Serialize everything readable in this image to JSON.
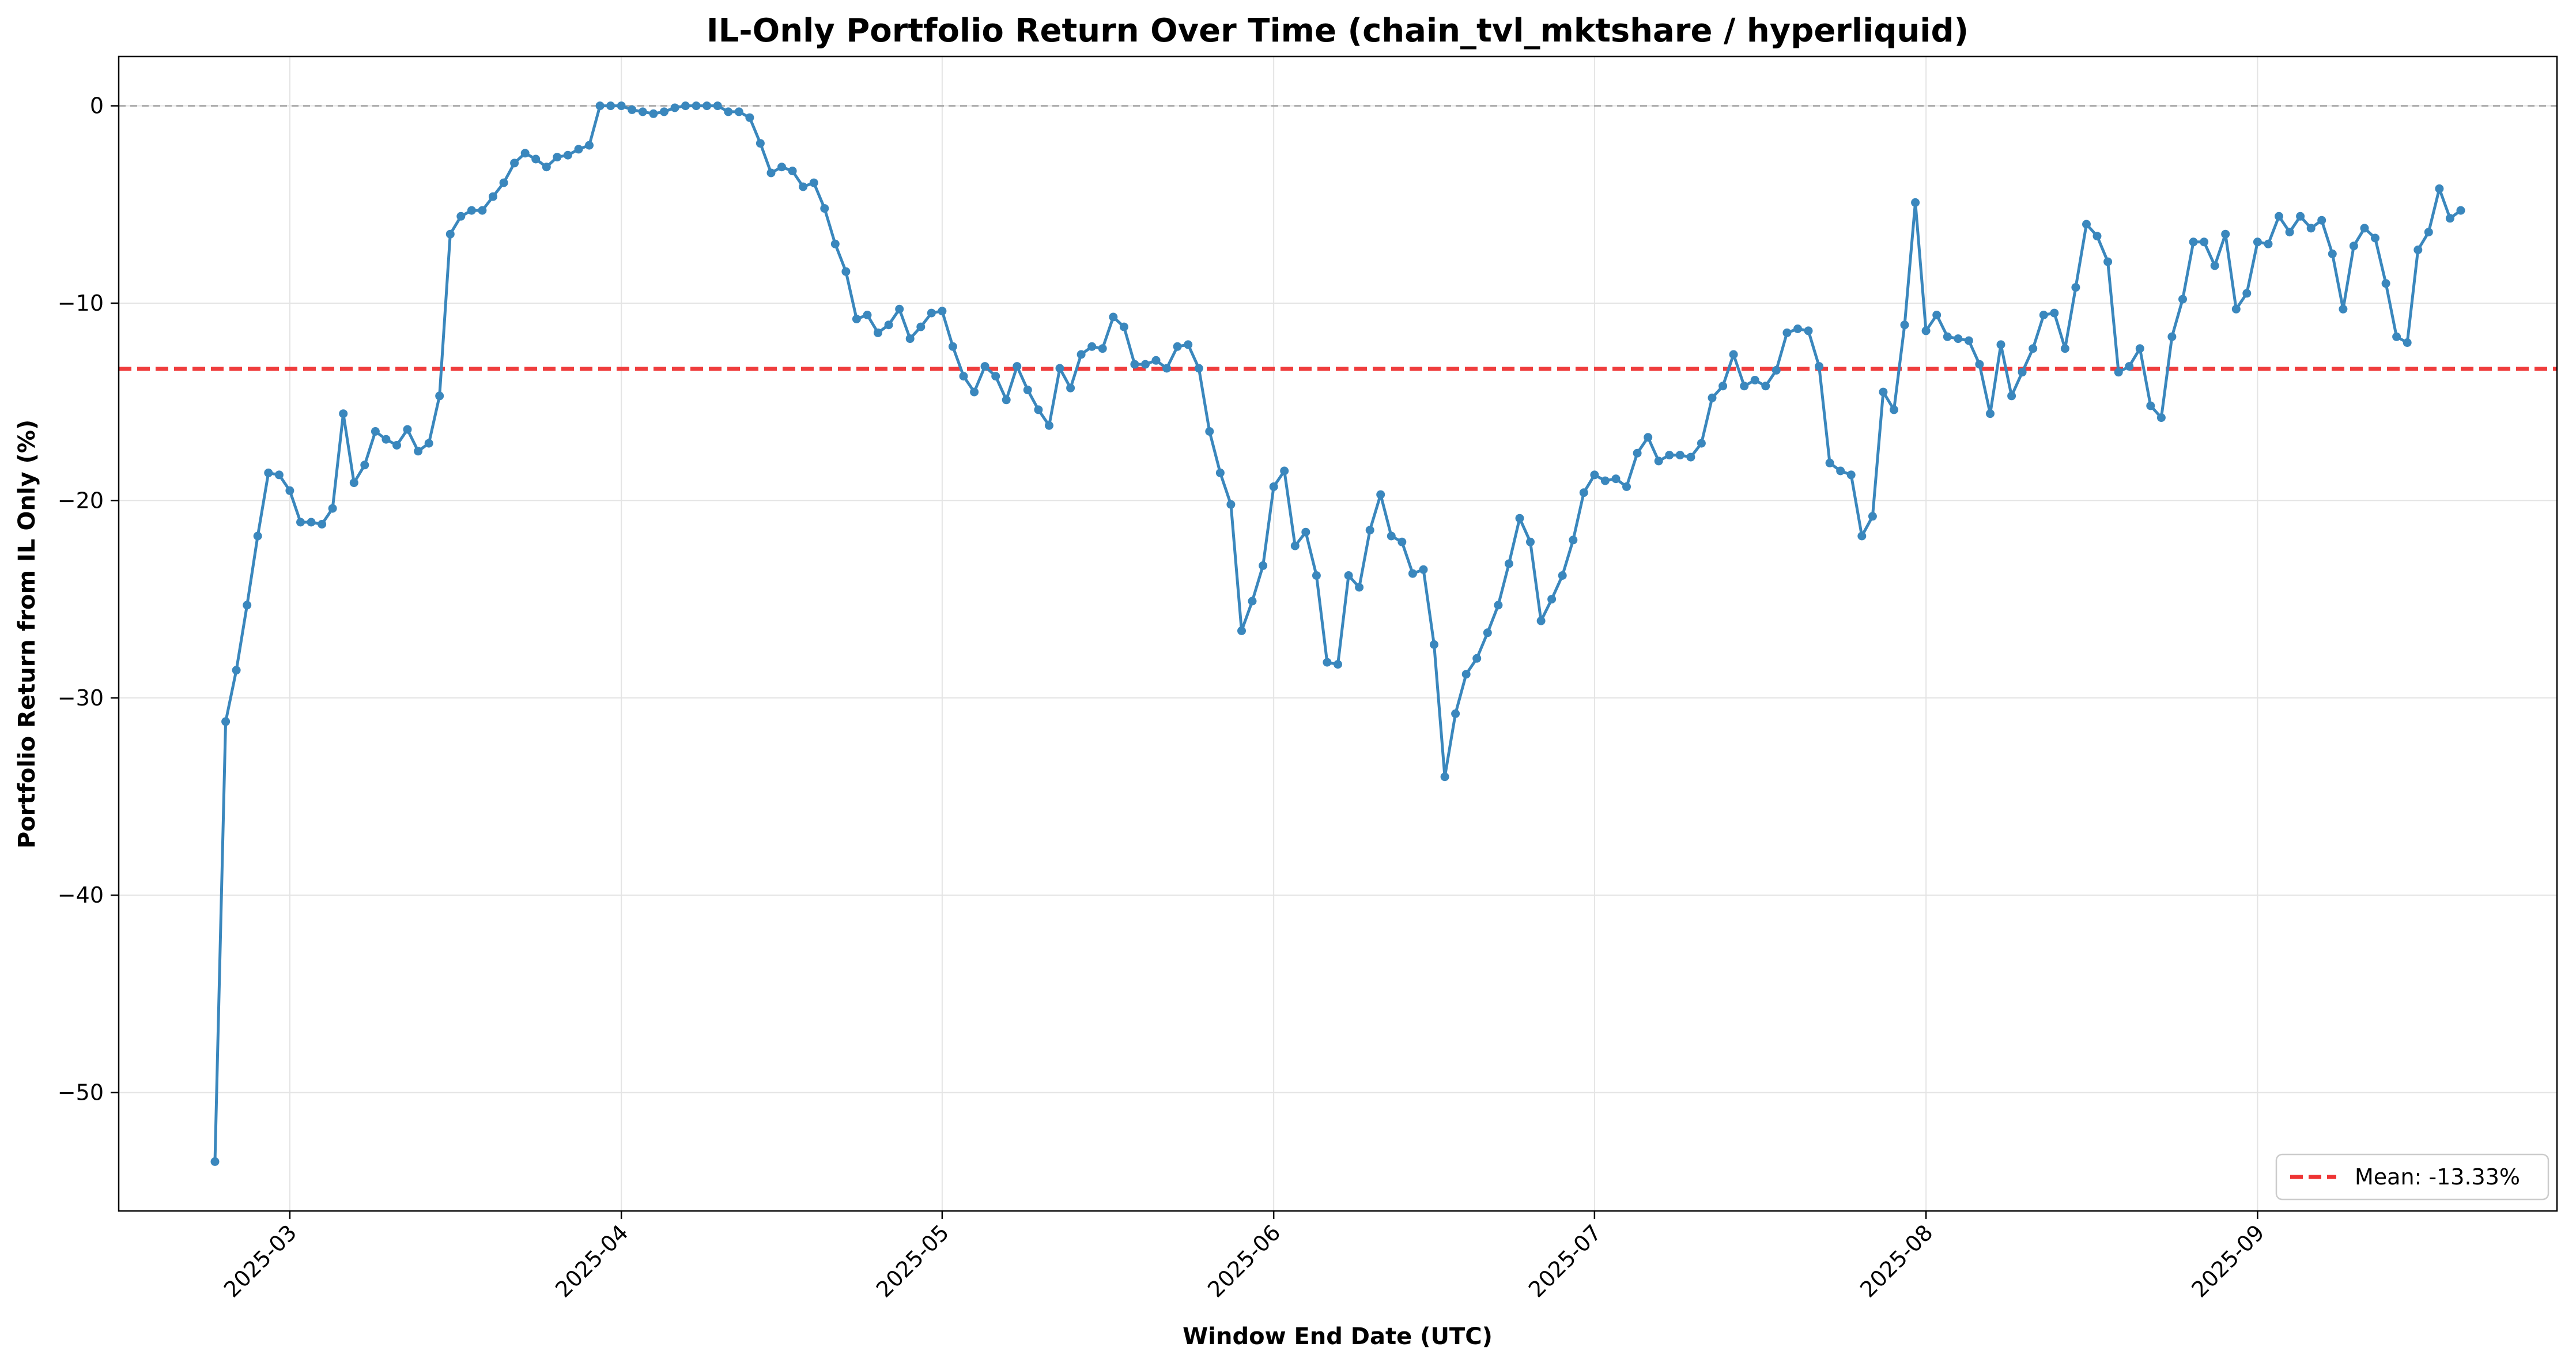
{
  "chart_data": {
    "type": "line",
    "title": "IL-Only Portfolio Return Over Time (chain_tvl_mktshare / hyperliquid)",
    "xlabel": "Window End Date (UTC)",
    "ylabel": "Portfolio Return from IL Only (%)",
    "x_range": [
      "2025-02-13",
      "2025-09-29"
    ],
    "ylim": [
      -56,
      2.5
    ],
    "x_ticks": [
      "2025-03",
      "2025-04",
      "2025-05",
      "2025-06",
      "2025-07",
      "2025-08",
      "2025-09"
    ],
    "y_ticks": [
      0,
      -10,
      -20,
      -30,
      -40,
      -50
    ],
    "grid": true,
    "zero_line": 0,
    "mean": {
      "value": -13.33,
      "label": "Mean: -13.33%",
      "color": "#ee3333"
    },
    "legend_position": "lower-right",
    "line_color": "#3a87bd",
    "series": [
      {
        "x_start": "2025-02-22",
        "step_days": 1,
        "values": [
          -53.5,
          -31.2,
          -28.6,
          -25.3,
          -21.8,
          -18.6,
          -18.7,
          -19.5,
          -21.1,
          -21.1,
          -21.2,
          -20.4,
          -15.6,
          -19.1,
          -18.2,
          -16.5,
          -16.9,
          -17.2,
          -16.4,
          -17.5,
          -17.1,
          -14.7,
          -6.5,
          -5.6,
          -5.3,
          -5.3,
          -4.6,
          -3.9,
          -2.9,
          -2.4,
          -2.7,
          -3.1,
          -2.6,
          -2.5,
          -2.2,
          -2.0,
          0.0,
          0.0,
          0.0,
          -0.2,
          -0.3,
          -0.4,
          -0.3,
          -0.1,
          0.0,
          0.0,
          0.0,
          0.0,
          -0.3,
          -0.3,
          -0.6,
          -1.9,
          -3.4,
          -3.1,
          -3.3,
          -4.1,
          -3.9,
          -5.2,
          -7.0,
          -8.4,
          -10.8,
          -10.6,
          -11.5,
          -11.1,
          -10.3,
          -11.8,
          -11.2,
          -10.5,
          -10.4,
          -12.2,
          -13.7,
          -14.5,
          -13.2,
          -13.7,
          -14.9,
          -13.2,
          -14.4,
          -15.4,
          -16.2,
          -13.3,
          -14.3,
          -12.6,
          -12.2,
          -12.3,
          -10.7,
          -11.2,
          -13.1,
          -13.1,
          -12.9,
          -13.3,
          -12.2,
          -12.1,
          -13.3,
          -16.5,
          -18.6,
          -20.2,
          -26.6,
          -25.1,
          -23.3,
          -19.3,
          -18.5,
          -22.3,
          -21.6,
          -23.8,
          -28.2,
          -28.3,
          -23.8,
          -24.4,
          -21.5,
          -19.7,
          -21.8,
          -22.1,
          -23.7,
          -23.5,
          -27.3,
          -34.0,
          -30.8,
          -28.8,
          -28.0,
          -26.7,
          -25.3,
          -23.2,
          -20.9,
          -22.1,
          -26.1,
          -25.0,
          -23.8,
          -22.0,
          -19.6,
          -18.7,
          -19.0,
          -18.9,
          -19.3,
          -17.6,
          -16.8,
          -18.0,
          -17.7,
          -17.7,
          -17.8,
          -17.1,
          -14.8,
          -14.2,
          -12.6,
          -14.2,
          -13.9,
          -14.2,
          -13.4,
          -11.5,
          -11.3,
          -11.4,
          -13.2,
          -18.1,
          -18.5,
          -18.7,
          -21.8,
          -20.8,
          -14.5,
          -15.4,
          -11.1,
          -4.9,
          -11.4,
          -10.6,
          -11.7,
          -11.8,
          -11.9,
          -13.1,
          -15.6,
          -12.1,
          -14.7,
          -13.5,
          -12.3,
          -10.6,
          -10.5,
          -12.3,
          -9.2,
          -6.0,
          -6.6,
          -7.9,
          -13.5,
          -13.2,
          -12.3,
          -15.2,
          -15.8,
          -11.7,
          -9.8,
          -6.9,
          -6.9,
          -8.1,
          -6.5,
          -10.3,
          -9.5,
          -6.9,
          -7.0,
          -5.6,
          -6.4,
          -5.6,
          -6.2,
          -5.8,
          -7.5,
          -10.3,
          -7.1,
          -6.2,
          -6.7,
          -9.0,
          -11.7,
          -12.0,
          -7.3,
          -6.4,
          -4.2,
          -5.7,
          -5.3
        ]
      }
    ]
  }
}
